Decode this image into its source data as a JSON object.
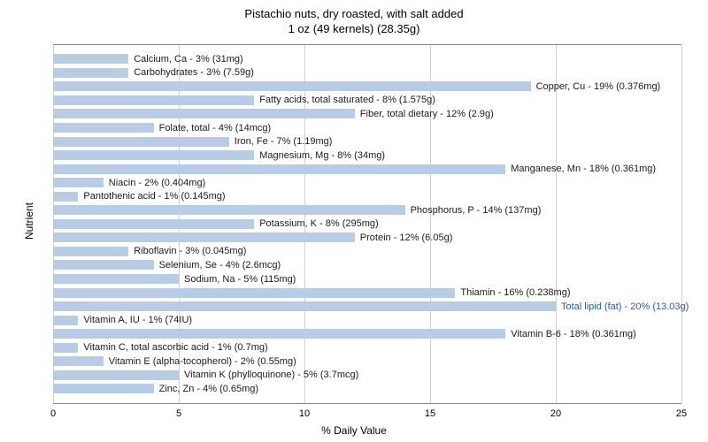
{
  "chart": {
    "type": "bar-horizontal",
    "title_line1": "Pistachio nuts, dry roasted, with salt added",
    "title_line2": "1 oz (49 kernels) (28.35g)",
    "title_fontsize": 13,
    "x_label": "% Daily Value",
    "y_label": "Nutrient",
    "label_fontsize": 12,
    "tick_fontsize": 11,
    "bar_label_fontsize": 11,
    "x_min": 0,
    "x_max": 25,
    "x_tick_step": 5,
    "x_ticks": [
      0,
      5,
      10,
      15,
      20,
      25
    ],
    "background_color": "#ffffff",
    "grid_color": "#d0d0d0",
    "axis_color": "#888888",
    "bar_color": "#b8cce6",
    "label_color": "#1a1a1a",
    "special_label_color": "#2a5aa0",
    "nutrients": [
      {
        "label": "Calcium, Ca - 3% (31mg)",
        "value": 3
      },
      {
        "label": "Carbohydrates - 3% (7.59g)",
        "value": 3
      },
      {
        "label": "Copper, Cu - 19% (0.376mg)",
        "value": 19
      },
      {
        "label": "Fatty acids, total saturated - 8% (1.575g)",
        "value": 8
      },
      {
        "label": "Fiber, total dietary - 12% (2.9g)",
        "value": 12
      },
      {
        "label": "Folate, total - 4% (14mcg)",
        "value": 4
      },
      {
        "label": "Iron, Fe - 7% (1.19mg)",
        "value": 7
      },
      {
        "label": "Magnesium, Mg - 8% (34mg)",
        "value": 8
      },
      {
        "label": "Manganese, Mn - 18% (0.361mg)",
        "value": 18
      },
      {
        "label": "Niacin - 2% (0.404mg)",
        "value": 2
      },
      {
        "label": "Pantothenic acid - 1% (0.145mg)",
        "value": 1
      },
      {
        "label": "Phosphorus, P - 14% (137mg)",
        "value": 14
      },
      {
        "label": "Potassium, K - 8% (295mg)",
        "value": 8
      },
      {
        "label": "Protein - 12% (6.05g)",
        "value": 12
      },
      {
        "label": "Riboflavin - 3% (0.045mg)",
        "value": 3
      },
      {
        "label": "Selenium, Se - 4% (2.6mcg)",
        "value": 4
      },
      {
        "label": "Sodium, Na - 5% (115mg)",
        "value": 5
      },
      {
        "label": "Thiamin - 16% (0.238mg)",
        "value": 16
      },
      {
        "label": "Total lipid (fat) - 20% (13.03g)",
        "value": 20,
        "special": true
      },
      {
        "label": "Vitamin A, IU - 1% (74IU)",
        "value": 1
      },
      {
        "label": "Vitamin B-6 - 18% (0.361mg)",
        "value": 18
      },
      {
        "label": "Vitamin C, total ascorbic acid - 1% (0.7mg)",
        "value": 1
      },
      {
        "label": "Vitamin E (alpha-tocopherol) - 2% (0.55mg)",
        "value": 2
      },
      {
        "label": "Vitamin K (phylloquinone) - 5% (3.7mcg)",
        "value": 5
      },
      {
        "label": "Zinc, Zn - 4% (0.65mg)",
        "value": 4
      }
    ]
  }
}
